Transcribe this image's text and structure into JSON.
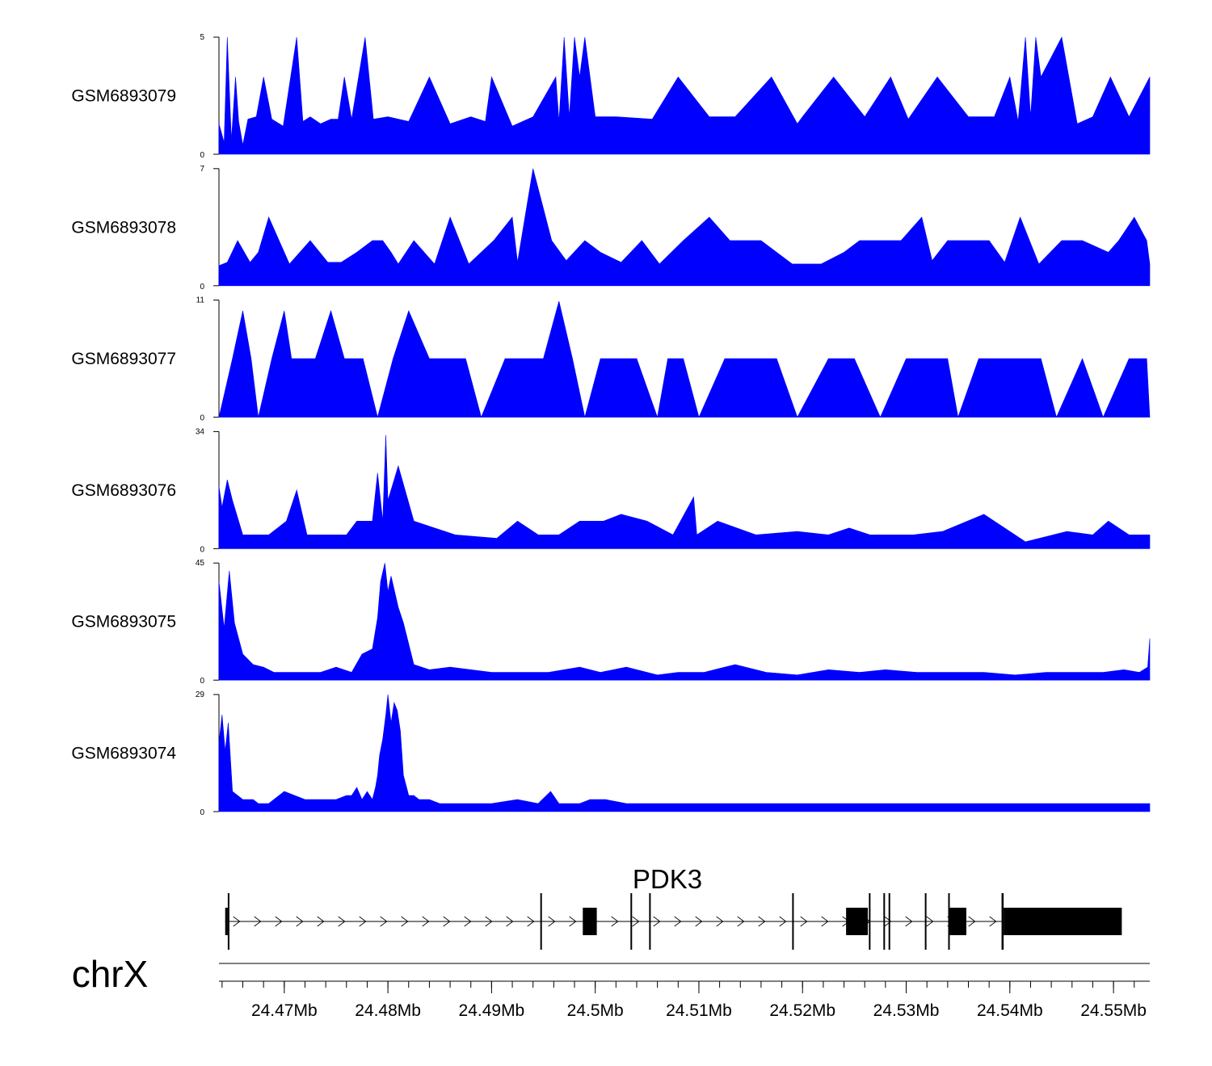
{
  "chart_data": {
    "type": "area",
    "title": "",
    "chromosome": "chrX",
    "x_unit": "Mb",
    "xlim": [
      24.4637,
      24.5535
    ],
    "x_ticks": [
      24.47,
      24.48,
      24.49,
      24.5,
      24.51,
      24.52,
      24.53,
      24.54,
      24.55
    ],
    "x_tick_labels": [
      "24.47Mb",
      "24.48Mb",
      "24.49Mb",
      "24.5Mb",
      "24.51Mb",
      "24.52Mb",
      "24.53Mb",
      "24.54Mb",
      "24.55Mb"
    ],
    "fill_color": "#0000ff",
    "tracks": [
      {
        "name": "GSM6893079",
        "ymax": 5,
        "ymin": 0,
        "x": [
          24.4637,
          24.4642,
          24.4645,
          24.4649,
          24.4653,
          24.4656,
          24.466,
          24.4665,
          24.4673,
          24.468,
          24.4688,
          24.4699,
          24.4712,
          24.4718,
          24.4725,
          24.4735,
          24.4745,
          24.4752,
          24.4758,
          24.4765,
          24.4778,
          24.4786,
          24.48,
          24.482,
          24.484,
          24.486,
          24.488,
          24.4894,
          24.49,
          24.492,
          24.494,
          24.4962,
          24.4965,
          24.497,
          24.4975,
          24.498,
          24.4985,
          24.499,
          24.5,
          24.502,
          24.5055,
          24.508,
          24.511,
          24.5135,
          24.517,
          24.5195,
          24.52,
          24.523,
          24.526,
          24.5285,
          24.5302,
          24.533,
          24.536,
          24.5385,
          24.54,
          24.5408,
          24.5415,
          24.542,
          24.5425,
          24.543,
          24.545,
          24.5465,
          24.548,
          24.5497,
          24.5515,
          24.5535
        ],
        "y": [
          1.3,
          0.5,
          5.0,
          0.6,
          3.3,
          1.4,
          0.4,
          1.5,
          1.6,
          3.3,
          1.5,
          1.2,
          5.0,
          1.4,
          1.6,
          1.3,
          1.5,
          1.5,
          3.3,
          1.5,
          5.0,
          1.5,
          1.6,
          1.4,
          3.3,
          1.3,
          1.6,
          1.4,
          3.3,
          1.2,
          1.6,
          3.3,
          1.4,
          5.0,
          1.6,
          5.0,
          3.3,
          5.0,
          1.6,
          1.6,
          1.5,
          3.3,
          1.6,
          1.6,
          3.3,
          1.3,
          1.6,
          3.3,
          1.6,
          3.3,
          1.5,
          3.3,
          1.6,
          1.6,
          3.3,
          1.4,
          5.0,
          1.6,
          5.0,
          3.3,
          5.0,
          1.3,
          1.6,
          3.3,
          1.6,
          3.3
        ]
      },
      {
        "name": "GSM6893078",
        "ymax": 7,
        "ymin": 0,
        "x": [
          24.4637,
          24.4645,
          24.4655,
          24.4667,
          24.4675,
          24.4685,
          24.4705,
          24.4725,
          24.4742,
          24.4755,
          24.477,
          24.4785,
          24.4795,
          24.4803,
          24.481,
          24.4825,
          24.4845,
          24.486,
          24.4878,
          24.4902,
          24.492,
          24.4925,
          24.494,
          24.4958,
          24.4972,
          24.499,
          24.5005,
          24.5025,
          24.5045,
          24.5062,
          24.5085,
          24.511,
          24.513,
          24.516,
          24.519,
          24.5218,
          24.524,
          24.5255,
          24.527,
          24.5295,
          24.5315,
          24.5325,
          24.534,
          24.536,
          24.538,
          24.5395,
          24.541,
          24.5428,
          24.545,
          24.547,
          24.5495,
          24.5505,
          24.552,
          24.5532,
          24.5535
        ],
        "y": [
          1.2,
          1.4,
          2.7,
          1.4,
          2.0,
          4.1,
          1.3,
          2.7,
          1.4,
          1.4,
          2.0,
          2.7,
          2.7,
          2.0,
          1.3,
          2.7,
          1.3,
          4.1,
          1.3,
          2.7,
          4.1,
          1.4,
          7.0,
          2.7,
          1.5,
          2.7,
          2.0,
          1.4,
          2.7,
          1.3,
          2.7,
          4.1,
          2.7,
          2.7,
          1.3,
          1.3,
          2.0,
          2.7,
          2.7,
          2.7,
          4.1,
          1.5,
          2.7,
          2.7,
          2.7,
          1.4,
          4.1,
          1.3,
          2.7,
          2.7,
          2.0,
          2.7,
          4.1,
          2.7,
          1.3
        ]
      },
      {
        "name": "GSM6893077",
        "ymax": 11,
        "ymin": 0,
        "x": [
          24.4637,
          24.465,
          24.466,
          24.4668,
          24.4675,
          24.4688,
          24.47,
          24.4707,
          24.4712,
          24.472,
          24.473,
          24.4745,
          24.4758,
          24.4768,
          24.4776,
          24.479,
          24.4805,
          24.482,
          24.484,
          24.4855,
          24.4862,
          24.4875,
          24.489,
          24.4913,
          24.4935,
          24.495,
          24.4965,
          24.4978,
          24.499,
          24.5005,
          24.502,
          24.504,
          24.506,
          24.507,
          24.5085,
          24.51,
          24.5125,
          24.5155,
          24.5175,
          24.5195,
          24.5225,
          24.525,
          24.5275,
          24.53,
          24.532,
          24.534,
          24.535,
          24.537,
          24.5385,
          24.5405,
          24.542,
          24.543,
          24.5445,
          24.547,
          24.549,
          24.5515,
          24.5532,
          24.5535
        ],
        "y": [
          0,
          5.5,
          10.0,
          5.5,
          0,
          5.5,
          10.0,
          5.5,
          5.5,
          5.5,
          5.5,
          10.0,
          5.5,
          5.5,
          5.5,
          0,
          5.5,
          10.0,
          5.5,
          5.5,
          5.5,
          5.5,
          0,
          5.5,
          5.5,
          5.5,
          10.9,
          5.5,
          0,
          5.5,
          5.5,
          5.5,
          0,
          5.5,
          5.5,
          0,
          5.5,
          5.5,
          5.5,
          0,
          5.5,
          5.5,
          0,
          5.5,
          5.5,
          5.5,
          0,
          5.5,
          5.5,
          5.5,
          5.5,
          5.5,
          0,
          5.5,
          0,
          5.5,
          5.5,
          0
        ]
      },
      {
        "name": "GSM6893076",
        "ymax": 34,
        "ymin": 0,
        "x": [
          24.4637,
          24.464,
          24.4645,
          24.465,
          24.466,
          24.4672,
          24.4685,
          24.4702,
          24.4712,
          24.4722,
          24.4735,
          24.4748,
          24.476,
          24.477,
          24.4785,
          24.479,
          24.4795,
          24.4798,
          24.48,
          24.4806,
          24.481,
          24.4825,
          24.4845,
          24.4865,
          24.4905,
          24.4925,
          24.4945,
          24.4965,
          24.4985,
          24.4995,
          24.5008,
          24.5025,
          24.505,
          24.5075,
          24.5095,
          24.5098,
          24.5118,
          24.5155,
          24.5195,
          24.5225,
          24.5245,
          24.5265,
          24.5285,
          24.5307,
          24.5335,
          24.5375,
          24.5415,
          24.5455,
          24.548,
          24.5495,
          24.5515,
          24.553,
          24.5535
        ],
        "y": [
          18,
          12,
          20,
          14,
          4,
          4,
          4,
          8,
          17,
          4,
          4,
          4,
          4,
          8,
          8,
          22,
          8,
          33,
          14,
          20,
          24,
          8,
          6,
          4,
          3,
          8,
          4,
          4,
          8,
          8,
          8,
          10,
          8,
          4,
          15,
          4,
          8,
          4,
          5,
          4,
          6,
          4,
          4,
          4,
          5,
          10,
          2,
          5,
          4,
          8,
          4,
          4,
          4
        ]
      },
      {
        "name": "GSM6893075",
        "ymax": 45,
        "ymin": 0,
        "x": [
          24.4637,
          24.4642,
          24.4647,
          24.4652,
          24.466,
          24.467,
          24.468,
          24.469,
          24.4705,
          24.472,
          24.4735,
          24.475,
          24.4765,
          24.4775,
          24.4785,
          24.479,
          24.4793,
          24.4797,
          24.48,
          24.4803,
          24.481,
          24.4815,
          24.4825,
          24.484,
          24.486,
          24.488,
          24.49,
          24.4925,
          24.4955,
          24.4985,
          24.5005,
          24.503,
          24.506,
          24.508,
          24.5105,
          24.5135,
          24.5165,
          24.5195,
          24.5225,
          24.5255,
          24.528,
          24.531,
          24.5345,
          24.5375,
          24.5405,
          24.5435,
          24.5465,
          24.549,
          24.551,
          24.5525,
          24.5533,
          24.5535
        ],
        "y": [
          38,
          20,
          42,
          22,
          10,
          6,
          5,
          3,
          3,
          3,
          3,
          5,
          3,
          10,
          12,
          24,
          38,
          45,
          34,
          40,
          28,
          22,
          6,
          4,
          5,
          4,
          3,
          3,
          3,
          5,
          3,
          5,
          2,
          3,
          3,
          6,
          3,
          2,
          4,
          3,
          4,
          3,
          3,
          3,
          2,
          3,
          3,
          3,
          4,
          3,
          5,
          16
        ]
      },
      {
        "name": "GSM6893074",
        "ymax": 29,
        "ymin": 0,
        "x": [
          24.4637,
          24.464,
          24.4643,
          24.4646,
          24.465,
          24.4655,
          24.466,
          24.4665,
          24.467,
          24.4675,
          24.468,
          24.4685,
          24.47,
          24.472,
          24.4735,
          24.475,
          24.476,
          24.4765,
          24.477,
          24.4775,
          24.478,
          24.4785,
          24.4788,
          24.479,
          24.4792,
          24.4795,
          24.4798,
          24.48,
          24.4803,
          24.4806,
          24.4809,
          24.4812,
          24.4815,
          24.482,
          24.4825,
          24.483,
          24.484,
          24.485,
          24.4865,
          24.488,
          24.49,
          24.4925,
          24.4945,
          24.4957,
          24.4965,
          24.4985,
          24.4995,
          24.501,
          24.503,
          24.506,
          24.509,
          24.5115,
          24.514,
          24.517,
          24.5195,
          24.5225,
          24.526,
          24.529,
          24.532,
          24.535,
          24.538,
          24.5415,
          24.5445,
          24.5475,
          24.55,
          24.552,
          24.5535
        ],
        "y": [
          17,
          24,
          15,
          22,
          5,
          4,
          3,
          3,
          3,
          2,
          2,
          2,
          5,
          3,
          3,
          3,
          4,
          4,
          6,
          3,
          5,
          3,
          6,
          9,
          14,
          18,
          24,
          29,
          22,
          27,
          25,
          20,
          9,
          4,
          4,
          3,
          3,
          2,
          2,
          2,
          2,
          3,
          2,
          5,
          2,
          2,
          3,
          3,
          2,
          2,
          2,
          2,
          2,
          2,
          2,
          2,
          2,
          2,
          2,
          2,
          2,
          2,
          2,
          2,
          2,
          2,
          2
        ]
      }
    ],
    "gene": {
      "name": "PDK3",
      "strand": "+",
      "start": 24.4643,
      "end": 24.5502,
      "exons": [
        {
          "start": 24.4643,
          "end": 24.46455,
          "tall": false
        },
        {
          "start": 24.46455,
          "end": 24.46468,
          "tall": true
        },
        {
          "start": 24.4947,
          "end": 24.49482,
          "tall": true
        },
        {
          "start": 24.4988,
          "end": 24.50015,
          "tall": false
        },
        {
          "start": 24.5034,
          "end": 24.50352,
          "tall": true
        },
        {
          "start": 24.5052,
          "end": 24.50532,
          "tall": true
        },
        {
          "start": 24.519,
          "end": 24.51912,
          "tall": true
        },
        {
          "start": 24.5242,
          "end": 24.5263,
          "tall": false
        },
        {
          "start": 24.5264,
          "end": 24.52652,
          "tall": true
        },
        {
          "start": 24.5278,
          "end": 24.52792,
          "tall": true
        },
        {
          "start": 24.5283,
          "end": 24.52842,
          "tall": true
        },
        {
          "start": 24.5318,
          "end": 24.53192,
          "tall": true
        },
        {
          "start": 24.5342,
          "end": 24.5358,
          "tall": false
        },
        {
          "start": 24.53405,
          "end": 24.53417,
          "tall": true
        },
        {
          "start": 24.5392,
          "end": 24.5394,
          "tall": true
        },
        {
          "start": 24.5394,
          "end": 24.5508,
          "tall": false
        }
      ]
    }
  }
}
